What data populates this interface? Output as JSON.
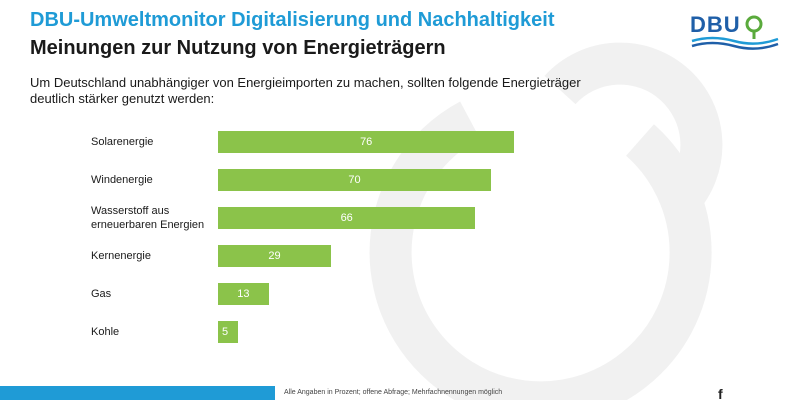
{
  "header": {
    "title": "DBU-Umweltmonitor Digitalisierung und Nachhaltigkeit",
    "subtitle": "Meinungen zur Nutzung von Energieträgern",
    "question": "Um Deutschland unabhängiger von Energieimporten zu machen, sollten folgende Energieträger deutlich stärker genutzt werden:"
  },
  "logo": {
    "text": "DBU",
    "icon": "dbu-leaf-icon"
  },
  "colors": {
    "title": "#1f9bd6",
    "bar": "#8bc34a",
    "logo": "#1f5fa8",
    "footer": "#1f9bd6"
  },
  "footer": {
    "note": "Alle Angaben in Prozent; offene Abfrage; Mehrfachnennungen möglich",
    "mark": "f"
  },
  "chart_data": {
    "type": "bar",
    "orientation": "horizontal",
    "title": "Meinungen zur Nutzung von Energieträgern",
    "categories": [
      "Solarenergie",
      "Windenergie",
      "Wasserstoff aus erneuerbaren Energien",
      "Kernenergie",
      "Gas",
      "Kohle"
    ],
    "category_lines": [
      [
        "Solarenergie"
      ],
      [
        "Windenergie"
      ],
      [
        "Wasserstoff aus",
        "erneuerbaren Energien"
      ],
      [
        "Kernenergie"
      ],
      [
        "Gas"
      ],
      [
        "Kohle"
      ]
    ],
    "values": [
      76,
      70,
      66,
      29,
      13,
      5
    ],
    "unit": "%",
    "xlim": [
      0,
      100
    ],
    "grid": false,
    "legend": "none"
  }
}
